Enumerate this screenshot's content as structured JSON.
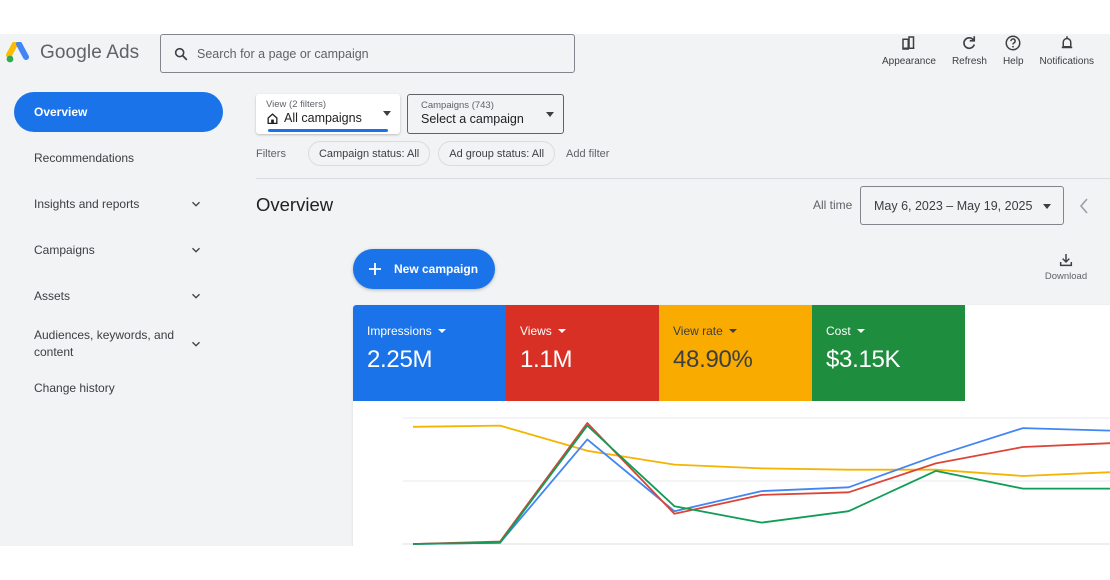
{
  "header": {
    "app_name": "Google Ads",
    "search": {
      "placeholder": "Search for a page or campaign",
      "value": ""
    },
    "actions": [
      {
        "label": "Appearance",
        "icon": "appearance-icon"
      },
      {
        "label": "Refresh",
        "icon": "refresh-icon"
      },
      {
        "label": "Help",
        "icon": "help-icon"
      },
      {
        "label": "Notifications",
        "icon": "bell-icon"
      }
    ]
  },
  "sidebar": {
    "items": [
      {
        "label": "Overview",
        "active": true,
        "expandable": false
      },
      {
        "label": "Recommendations",
        "active": false,
        "expandable": false
      },
      {
        "label": "Insights and reports",
        "active": false,
        "expandable": true
      },
      {
        "label": "Campaigns",
        "active": false,
        "expandable": true
      },
      {
        "label": "Assets",
        "active": false,
        "expandable": true
      },
      {
        "label": "Audiences, keywords, and content",
        "active": false,
        "expandable": true
      },
      {
        "label": "Change history",
        "active": false,
        "expandable": false
      }
    ]
  },
  "scope": {
    "view": {
      "sublabel": "View (2 filters)",
      "value": "All campaigns",
      "icon": "home-icon"
    },
    "campaigns": {
      "sublabel": "Campaigns (743)",
      "value": "Select a campaign"
    }
  },
  "filters": {
    "label": "Filters",
    "chips": [
      "Campaign status: All",
      "Ad group status: All"
    ],
    "add_label": "Add filter"
  },
  "overview": {
    "title": "Overview",
    "range_label": "All time",
    "date_range": "May 6, 2023 – May 19, 2025",
    "new_campaign_label": "New campaign",
    "download_label": "Download"
  },
  "metrics": [
    {
      "label": "Impressions",
      "value": "2.25M",
      "color": "#1a73e8"
    },
    {
      "label": "Views",
      "value": "1.1M",
      "color": "#d93025"
    },
    {
      "label": "View rate",
      "value": "48.90%",
      "color": "#f9ab00"
    },
    {
      "label": "Cost",
      "value": "$3.15K",
      "color": "#1e8e3e"
    }
  ],
  "chart_data": {
    "type": "line",
    "title": "",
    "xlabel": "",
    "ylabel": "",
    "x": [
      1,
      2,
      3,
      4,
      5,
      6,
      7,
      8,
      9
    ],
    "ylim": [
      0,
      100
    ],
    "grid": true,
    "legend_position": "none",
    "note": "Values are normalized relative heights (0 = bottom gridline, 100 = top gridline); no axis tick labels are visible.",
    "series": [
      {
        "name": "Impressions",
        "color": "#4285f4",
        "values": [
          0,
          1,
          83,
          26,
          42,
          45,
          70,
          92,
          90
        ]
      },
      {
        "name": "Views",
        "color": "#db4437",
        "values": [
          0,
          2,
          96,
          24,
          39,
          41,
          64,
          77,
          80
        ]
      },
      {
        "name": "View rate",
        "color": "#f4b400",
        "values": [
          93,
          94,
          74,
          63,
          60,
          59,
          59,
          54,
          57
        ]
      },
      {
        "name": "Cost",
        "color": "#0f9d58",
        "values": [
          0,
          1,
          94,
          30,
          17,
          26,
          58,
          44,
          44
        ]
      }
    ]
  }
}
